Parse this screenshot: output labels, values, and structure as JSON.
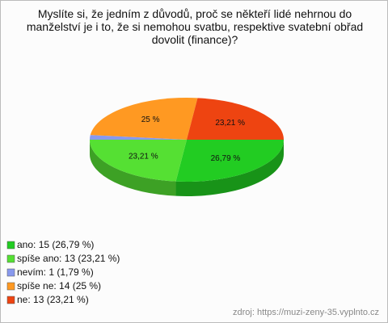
{
  "chart_data": {
    "type": "pie3d",
    "title": "Myslíte si, že jedním z důvodů, proč se někteří lidé nehrnou do manželství je i to, že si nemohou svatbu, respektive svatební obřad dovolit (finance)?",
    "categories": [
      "ano: 15 (26,79 %)",
      "spíše ano: 13 (23,21 %)",
      "nevím: 1 (1,79 %)",
      "spíše ne: 14 (25 %)",
      "ne: 13 (23,21 %)"
    ],
    "values": [
      26.79,
      23.21,
      1.79,
      25,
      23.21
    ],
    "value_labels": [
      "26,79 %",
      "23,21 %",
      null,
      "25 %",
      "23,21 %"
    ],
    "colors": [
      "#22cc22",
      "#55e033",
      "#8899ee",
      "#ff9922",
      "#ee4411"
    ],
    "legend": "bottom-left",
    "source": "zdroj: https://muzi-zeny-35.vyplnto.cz"
  }
}
